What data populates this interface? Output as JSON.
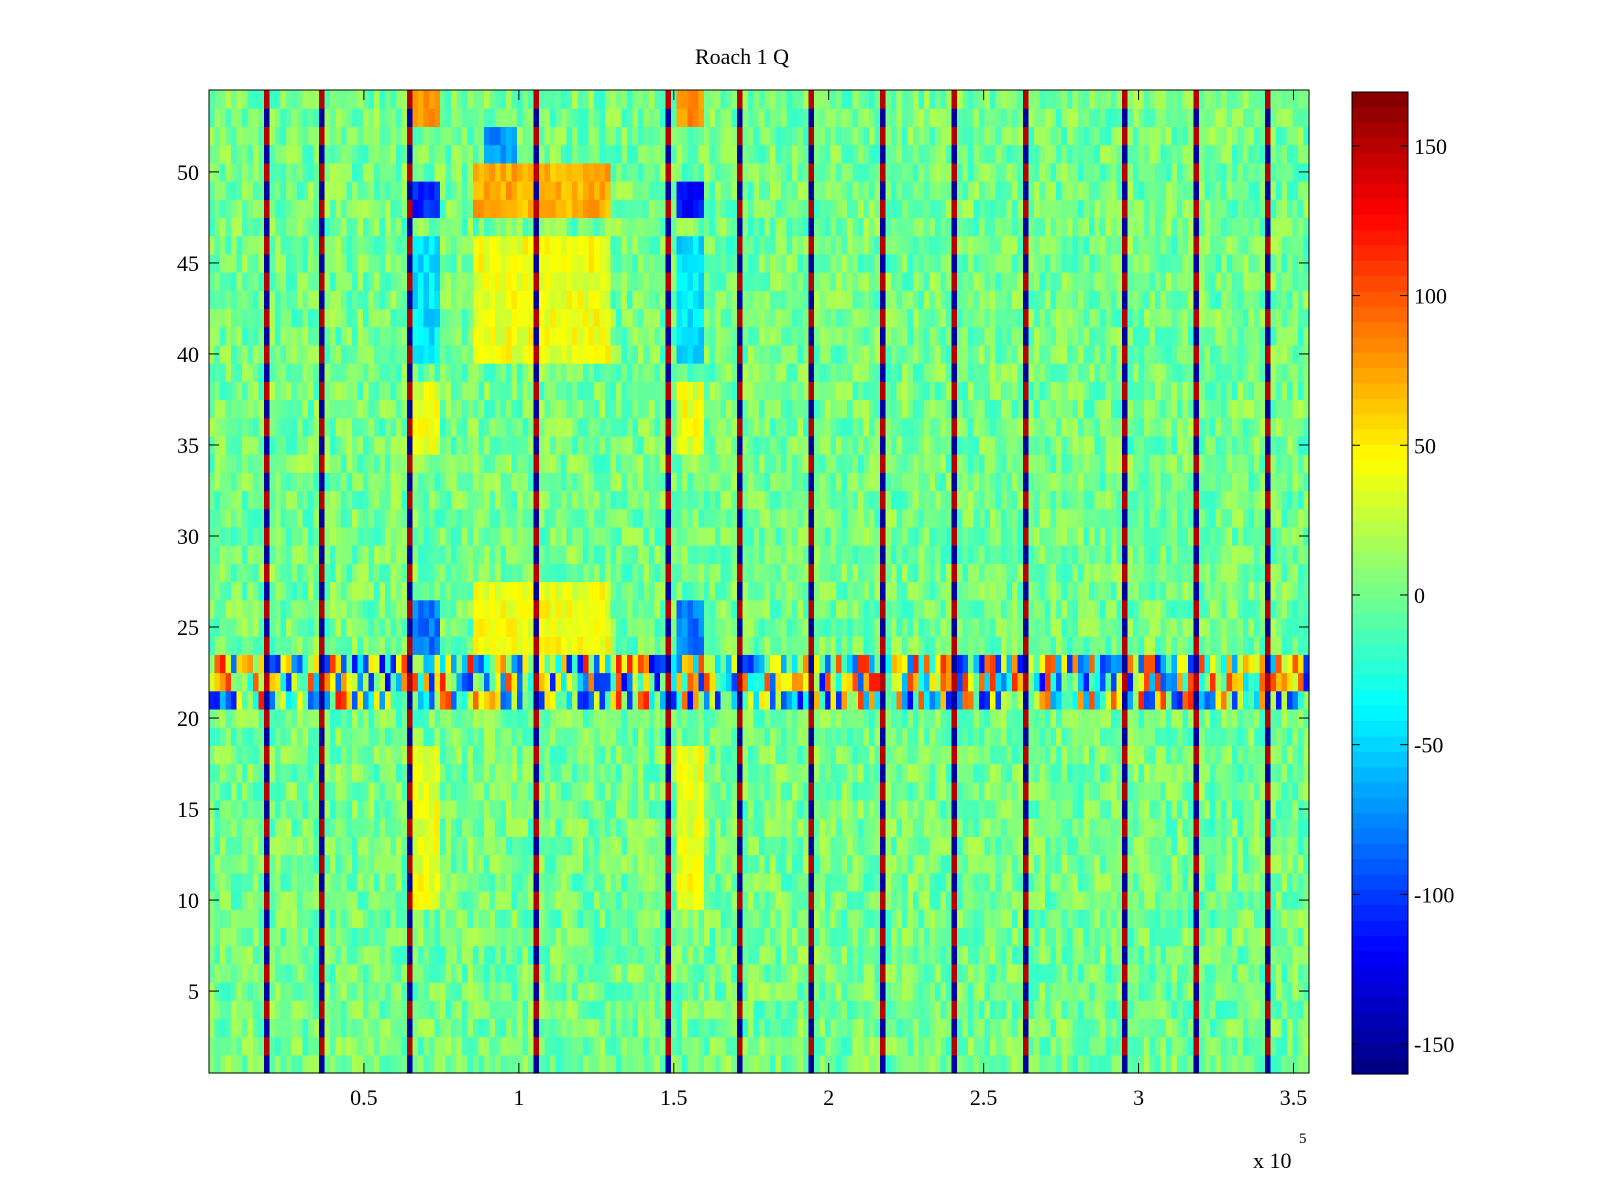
{
  "chart_data": {
    "type": "heatmap",
    "title": "Roach 1 Q",
    "xlabel": "",
    "ylabel": "",
    "x_scale_label": {
      "base": "x 10",
      "exponent": "5"
    },
    "xlim": [
      0,
      3.55
    ],
    "ylim": [
      0.5,
      54.5
    ],
    "x_ticks": [
      {
        "value": 0.5,
        "label": "0.5"
      },
      {
        "value": 1.0,
        "label": "1"
      },
      {
        "value": 1.5,
        "label": "1.5"
      },
      {
        "value": 2.0,
        "label": "2"
      },
      {
        "value": 2.5,
        "label": "2.5"
      },
      {
        "value": 3.0,
        "label": "3"
      },
      {
        "value": 3.5,
        "label": "3.5"
      }
    ],
    "y_ticks": [
      {
        "value": 5,
        "label": "5"
      },
      {
        "value": 10,
        "label": "10"
      },
      {
        "value": 15,
        "label": "15"
      },
      {
        "value": 20,
        "label": "20"
      },
      {
        "value": 25,
        "label": "25"
      },
      {
        "value": 30,
        "label": "30"
      },
      {
        "value": 35,
        "label": "35"
      },
      {
        "value": 40,
        "label": "40"
      },
      {
        "value": 45,
        "label": "45"
      },
      {
        "value": 50,
        "label": "50"
      }
    ],
    "colormap": "jet",
    "clim": [
      -160,
      168
    ],
    "colorbar_ticks": [
      {
        "value": 150,
        "label": "150"
      },
      {
        "value": 100,
        "label": "100"
      },
      {
        "value": 50,
        "label": "50"
      },
      {
        "value": 0,
        "label": "0"
      },
      {
        "value": -50,
        "label": "-50"
      },
      {
        "value": -100,
        "label": "-100"
      },
      {
        "value": -150,
        "label": "-150"
      }
    ],
    "rows": 54,
    "background_level": 0,
    "noise_amplitude": 22,
    "vertical_stripes_x": [
      0.19,
      0.37,
      0.64,
      1.05,
      1.48,
      1.71,
      1.95,
      2.18,
      2.4,
      2.63,
      2.95,
      3.19,
      3.42
    ],
    "stripe_value": 150,
    "noisy_band_rows": [
      21,
      22,
      23
    ],
    "noisy_band_amplitude": 120,
    "features": [
      {
        "x": [
          0.65,
          0.75
        ],
        "rows": [
          48,
          49
        ],
        "value": -110
      },
      {
        "x": [
          1.5,
          1.6
        ],
        "rows": [
          48,
          49
        ],
        "value": -110
      },
      {
        "x": [
          0.65,
          0.75
        ],
        "rows": [
          24,
          26
        ],
        "value": -80
      },
      {
        "x": [
          1.5,
          1.6
        ],
        "rows": [
          24,
          26
        ],
        "value": -80
      },
      {
        "x": [
          0.85,
          1.3
        ],
        "rows": [
          48,
          50
        ],
        "value": 70
      },
      {
        "x": [
          0.85,
          1.3
        ],
        "rows": [
          40,
          46
        ],
        "value": 40
      },
      {
        "x": [
          0.85,
          1.3
        ],
        "rows": [
          24,
          27
        ],
        "value": 40
      },
      {
        "x": [
          0.88,
          1.0
        ],
        "rows": [
          51,
          52
        ],
        "value": -70
      },
      {
        "x": [
          0.65,
          0.75
        ],
        "rows": [
          40,
          46
        ],
        "value": -45
      },
      {
        "x": [
          1.5,
          1.6
        ],
        "rows": [
          40,
          46
        ],
        "value": -45
      },
      {
        "x": [
          0.65,
          0.75
        ],
        "rows": [
          10,
          18
        ],
        "value": 38
      },
      {
        "x": [
          1.5,
          1.6
        ],
        "rows": [
          10,
          18
        ],
        "value": 38
      },
      {
        "x": [
          0.65,
          0.75
        ],
        "rows": [
          35,
          38
        ],
        "value": 38
      },
      {
        "x": [
          1.5,
          1.6
        ],
        "rows": [
          35,
          38
        ],
        "value": 38
      },
      {
        "x": [
          0.65,
          0.75
        ],
        "rows": [
          53,
          54
        ],
        "value": 80
      },
      {
        "x": [
          1.5,
          1.6
        ],
        "rows": [
          53,
          54
        ],
        "value": 80
      }
    ]
  }
}
